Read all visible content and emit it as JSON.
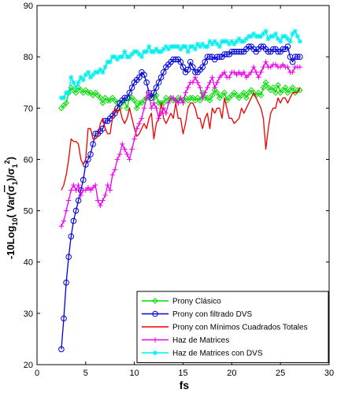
{
  "chart_data": {
    "type": "line",
    "xlabel": "fs",
    "ylabel": "-10Log",
    "ylabel_sub": "10",
    "ylabel_rest": "( Var(",
    "ylabel_sigma_hat": "σ",
    "ylabel_one_a": "1",
    "ylabel_mid": ")/",
    "ylabel_sigma": "σ",
    "ylabel_one_b": "1",
    "ylabel_sup": "2",
    "ylabel_close": ")",
    "xlim": [
      0,
      30
    ],
    "ylim": [
      20,
      90
    ],
    "xticks": [
      0,
      5,
      10,
      15,
      20,
      25,
      30
    ],
    "yticks": [
      20,
      30,
      40,
      50,
      60,
      70,
      80,
      90
    ],
    "grid": false,
    "legend_position": "lower-right",
    "series": [
      {
        "name": "Prony Clásico",
        "color": "#00dd00",
        "marker": "diamond",
        "x": [
          2.5,
          2.75,
          3.0,
          3.25,
          3.5,
          3.75,
          4.0,
          4.25,
          4.5,
          4.75,
          5.0,
          5.25,
          5.5,
          5.75,
          6.0,
          6.25,
          6.5,
          6.75,
          7.0,
          7.25,
          7.5,
          7.75,
          8.0,
          8.25,
          8.5,
          8.75,
          9.0,
          9.25,
          9.5,
          9.75,
          10.0,
          10.25,
          10.5,
          10.75,
          11.0,
          11.25,
          11.5,
          11.75,
          12.0,
          12.25,
          12.5,
          12.75,
          13.0,
          13.25,
          13.5,
          13.75,
          14.0,
          14.25,
          14.5,
          14.75,
          15.0,
          15.25,
          15.5,
          15.75,
          16.0,
          16.25,
          16.5,
          16.75,
          17.0,
          17.25,
          17.5,
          17.75,
          18.0,
          18.25,
          18.5,
          18.75,
          19.0,
          19.25,
          19.5,
          19.75,
          20.0,
          20.25,
          20.5,
          20.75,
          21.0,
          21.25,
          21.5,
          21.75,
          22.0,
          22.25,
          22.5,
          22.75,
          23.0,
          23.25,
          23.5,
          23.75,
          24.0,
          24.25,
          24.5,
          24.75,
          25.0,
          25.25,
          25.5,
          25.75,
          26.0,
          26.25,
          26.5,
          26.75,
          27.0
        ],
        "y": [
          70,
          70.5,
          71,
          73,
          74,
          73.5,
          73,
          74,
          73.5,
          73,
          73.5,
          73,
          73,
          72.5,
          73,
          72.5,
          72,
          71,
          72,
          71.5,
          71.5,
          72,
          71.5,
          71,
          70,
          71,
          71.5,
          70,
          72,
          72,
          71.5,
          70,
          71,
          71,
          71.5,
          72,
          72,
          72.5,
          72,
          72.5,
          71,
          71,
          71,
          72,
          71.5,
          72,
          71.5,
          71.5,
          72,
          71.5,
          71.5,
          72,
          71.5,
          72,
          72,
          71.5,
          72,
          71.5,
          73,
          72,
          72,
          71.5,
          72.5,
          73.5,
          73,
          72,
          72.5,
          73,
          71.5,
          72,
          72.5,
          73,
          72.5,
          72,
          72.5,
          73,
          72,
          73,
          73.5,
          73,
          72.5,
          73,
          72.5,
          74,
          75,
          74,
          73.5,
          74,
          73,
          74.5,
          73,
          73.5,
          74,
          73,
          73.5,
          74,
          73,
          73.5,
          73.5
        ]
      },
      {
        "name": "Prony con filtrado DVS",
        "color": "#0000dd",
        "marker": "circle",
        "x": [
          2.5,
          2.75,
          3.0,
          3.25,
          3.5,
          3.75,
          4.0,
          4.25,
          4.5,
          4.75,
          5.0,
          5.25,
          5.5,
          5.75,
          6.0,
          6.25,
          6.5,
          6.75,
          7.0,
          7.25,
          7.5,
          7.75,
          8.0,
          8.25,
          8.5,
          8.75,
          9.0,
          9.25,
          9.5,
          9.75,
          10.0,
          10.25,
          10.5,
          10.75,
          11.0,
          11.25,
          11.5,
          11.75,
          12.0,
          12.25,
          12.5,
          12.75,
          13.0,
          13.25,
          13.5,
          13.75,
          14.0,
          14.25,
          14.5,
          14.75,
          15.0,
          15.25,
          15.5,
          15.75,
          16.0,
          16.25,
          16.5,
          16.75,
          17.0,
          17.25,
          17.5,
          17.75,
          18.0,
          18.25,
          18.5,
          18.75,
          19.0,
          19.25,
          19.5,
          19.75,
          20.0,
          20.25,
          20.5,
          20.75,
          21.0,
          21.25,
          21.5,
          21.75,
          22.0,
          22.25,
          22.5,
          22.75,
          23.0,
          23.25,
          23.5,
          23.75,
          24.0,
          24.25,
          24.5,
          24.75,
          25.0,
          25.25,
          25.5,
          25.75,
          26.0,
          26.25,
          26.5,
          26.75,
          27.0
        ],
        "y": [
          23,
          29,
          36,
          41,
          45,
          48,
          50,
          52,
          54,
          56,
          59,
          60,
          61,
          63,
          65,
          65,
          65.5,
          66,
          67.5,
          67.5,
          68,
          68.5,
          69,
          70,
          71,
          71.5,
          72,
          72,
          73,
          74,
          75,
          75.5,
          76,
          77,
          76.5,
          75,
          73,
          72,
          73,
          74,
          75,
          76,
          77,
          78,
          78.5,
          79,
          79.5,
          79.5,
          79.5,
          79,
          78,
          77,
          77.5,
          79,
          78,
          77,
          77,
          77.5,
          78,
          79,
          80,
          80,
          80,
          79.5,
          80,
          80,
          80,
          80.5,
          80.5,
          80.5,
          81,
          81,
          81,
          81,
          81,
          81,
          81.5,
          82,
          82,
          81.5,
          81,
          81.5,
          82,
          82,
          81.5,
          81,
          81,
          81.5,
          81.5,
          81,
          81,
          81.5,
          81.5,
          82,
          80,
          79,
          80,
          80,
          80
        ]
      },
      {
        "name": "Prony con Mínimos Cuadrados Totales",
        "color": "#ee0000",
        "marker": "none",
        "x": [
          2.5,
          2.75,
          3.0,
          3.25,
          3.5,
          3.75,
          4.0,
          4.25,
          4.5,
          4.75,
          5.0,
          5.25,
          5.5,
          5.75,
          6.0,
          6.25,
          6.5,
          6.75,
          7.0,
          7.25,
          7.5,
          7.75,
          8.0,
          8.25,
          8.5,
          8.75,
          9.0,
          9.25,
          9.5,
          9.75,
          10.0,
          10.25,
          10.5,
          10.75,
          11.0,
          11.25,
          11.5,
          11.75,
          12.0,
          12.25,
          12.5,
          12.75,
          13.0,
          13.25,
          13.5,
          13.75,
          14.0,
          14.25,
          14.5,
          14.75,
          15.0,
          15.25,
          15.5,
          15.75,
          16.0,
          16.25,
          16.5,
          16.75,
          17.0,
          17.25,
          17.5,
          17.75,
          18.0,
          18.25,
          18.5,
          18.75,
          19.0,
          19.25,
          19.5,
          19.75,
          20.0,
          20.25,
          20.5,
          20.75,
          21.0,
          21.25,
          21.5,
          21.75,
          22.0,
          22.25,
          22.5,
          22.75,
          23.0,
          23.25,
          23.5,
          23.75,
          24.0,
          24.25,
          24.5,
          24.75,
          25.0,
          25.25,
          25.5,
          25.75,
          26.0,
          26.25,
          26.5,
          26.75,
          27.0
        ],
        "y": [
          54,
          55,
          57,
          60,
          64,
          63.5,
          63.5,
          63,
          60,
          59,
          60,
          66,
          66,
          64,
          64,
          64.5,
          67,
          68,
          66,
          65,
          65,
          68,
          70,
          69,
          70,
          68,
          67,
          68,
          70,
          68,
          66,
          64.5,
          65,
          66,
          67,
          66,
          68,
          69,
          64,
          67,
          68,
          71,
          68,
          67,
          68,
          69,
          68,
          71,
          68,
          68,
          65,
          67,
          70,
          71,
          71,
          70,
          68,
          68,
          66,
          68,
          69,
          66,
          70,
          69,
          70,
          70,
          68,
          72,
          70,
          68,
          68,
          67,
          67.5,
          68,
          70,
          69,
          70,
          71,
          72,
          73,
          72,
          71,
          70,
          68,
          62,
          66,
          69,
          70,
          70,
          72,
          71,
          72,
          72,
          71,
          72,
          73,
          73,
          73,
          74
        ]
      },
      {
        "name": "Haz de Matrices",
        "color": "#ee00ee",
        "marker": "plus",
        "x": [
          2.5,
          2.75,
          3.0,
          3.25,
          3.5,
          3.75,
          4.0,
          4.25,
          4.5,
          4.75,
          5.0,
          5.25,
          5.5,
          5.75,
          6.0,
          6.25,
          6.5,
          6.75,
          7.0,
          7.25,
          7.5,
          7.75,
          8.0,
          8.25,
          8.5,
          8.75,
          9.0,
          9.25,
          9.5,
          9.75,
          10.0,
          10.25,
          10.5,
          10.75,
          11.0,
          11.25,
          11.5,
          11.75,
          12.0,
          12.25,
          12.5,
          12.75,
          13.0,
          13.25,
          13.5,
          13.75,
          14.0,
          14.25,
          14.5,
          14.75,
          15.0,
          15.25,
          15.5,
          15.75,
          16.0,
          16.25,
          16.5,
          16.75,
          17.0,
          17.25,
          17.5,
          17.75,
          18.0,
          18.25,
          18.5,
          18.75,
          19.0,
          19.25,
          19.5,
          19.75,
          20.0,
          20.25,
          20.5,
          20.75,
          21.0,
          21.25,
          21.5,
          21.75,
          22.0,
          22.25,
          22.5,
          22.75,
          23.0,
          23.25,
          23.5,
          23.75,
          24.0,
          24.25,
          24.5,
          24.75,
          25.0,
          25.25,
          25.5,
          25.75,
          26.0,
          26.25,
          26.5,
          26.75,
          27.0
        ],
        "y": [
          47,
          48,
          50,
          52,
          54,
          55,
          54,
          55,
          53,
          54,
          54,
          54.5,
          54,
          54.5,
          55,
          52,
          51,
          52,
          53,
          55,
          54,
          57,
          58,
          60,
          61,
          63,
          62,
          61,
          60,
          62,
          64,
          66,
          67,
          68,
          70,
          72,
          73,
          70,
          71,
          70,
          68,
          69,
          70,
          69,
          71,
          72,
          72,
          71.5,
          71,
          72,
          71,
          73,
          74,
          75,
          75,
          76,
          75,
          74,
          72,
          73,
          74,
          75,
          76,
          74,
          75,
          76,
          76.5,
          77,
          76,
          76,
          77,
          77,
          76.5,
          77,
          76.5,
          77,
          76,
          76.5,
          77,
          78,
          77,
          76,
          77,
          78,
          79,
          78,
          78,
          78.5,
          78.5,
          78,
          78,
          78.5,
          78,
          78,
          77,
          77,
          78,
          78,
          78
        ]
      },
      {
        "name": "Haz de Matrices con DVS",
        "color": "#00eeee",
        "marker": "star",
        "x": [
          2.5,
          2.75,
          3.0,
          3.25,
          3.5,
          3.75,
          4.0,
          4.25,
          4.5,
          4.75,
          5.0,
          5.25,
          5.5,
          5.75,
          6.0,
          6.25,
          6.5,
          6.75,
          7.0,
          7.25,
          7.5,
          7.75,
          8.0,
          8.25,
          8.5,
          8.75,
          9.0,
          9.25,
          9.5,
          9.75,
          10.0,
          10.25,
          10.5,
          10.75,
          11.0,
          11.25,
          11.5,
          11.75,
          12.0,
          12.25,
          12.5,
          12.75,
          13.0,
          13.25,
          13.5,
          13.75,
          14.0,
          14.25,
          14.5,
          14.75,
          15.0,
          15.25,
          15.5,
          15.75,
          16.0,
          16.25,
          16.5,
          16.75,
          17.0,
          17.25,
          17.5,
          17.75,
          18.0,
          18.25,
          18.5,
          18.75,
          19.0,
          19.25,
          19.5,
          19.75,
          20.0,
          20.25,
          20.5,
          20.75,
          21.0,
          21.25,
          21.5,
          21.75,
          22.0,
          22.25,
          22.5,
          22.75,
          23.0,
          23.25,
          23.5,
          23.75,
          24.0,
          24.25,
          24.5,
          24.75,
          25.0,
          25.25,
          25.5,
          25.75,
          26.0,
          26.25,
          26.5,
          26.75,
          27.0
        ],
        "y": [
          72,
          72,
          73,
          73,
          76,
          75,
          74,
          75,
          76,
          75.5,
          76.5,
          77,
          76,
          76.5,
          77,
          77,
          77.5,
          77,
          78,
          79,
          79,
          80,
          80,
          79.5,
          80,
          80,
          81,
          80,
          80,
          80.5,
          81,
          81,
          80.5,
          80,
          81,
          81,
          82,
          81,
          81,
          81.5,
          81,
          81,
          81.5,
          82,
          81.5,
          82,
          82,
          82,
          82,
          81.5,
          82,
          82,
          81,
          82,
          82,
          81.5,
          82.5,
          82,
          82.5,
          82,
          82,
          83,
          82.5,
          83,
          82.5,
          82,
          83,
          83,
          83,
          82.5,
          83,
          82.5,
          83,
          83.5,
          83,
          83,
          83.5,
          84,
          84,
          84.5,
          84,
          84,
          84,
          84.5,
          85,
          83.5,
          84,
          84,
          84.5,
          83.5,
          83,
          84,
          84,
          83.5,
          83,
          84.5,
          85,
          84,
          83
        ]
      }
    ]
  }
}
